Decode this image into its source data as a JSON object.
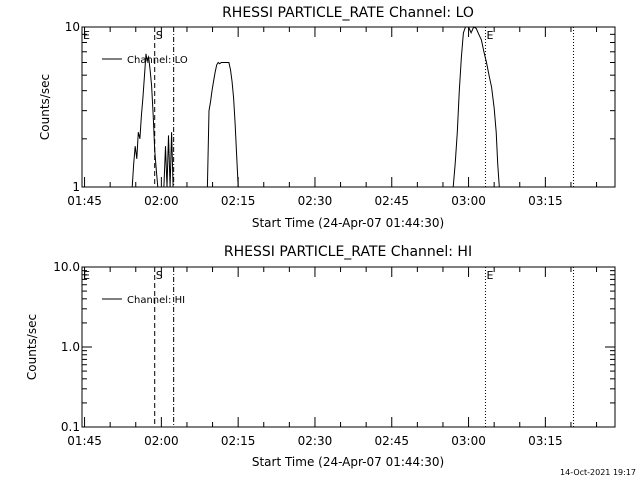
{
  "chart_data": [
    {
      "type": "line",
      "title": "RHESSI PARTICLE_RATE Channel: LO",
      "xlabel": "Start Time (24-Apr-07 01:44:30)",
      "ylabel": "Counts/sec",
      "yscale": "log",
      "ylim": [
        1,
        10
      ],
      "xlim_minutes": [
        0,
        100
      ],
      "x_ticks": [
        {
          "label": "01:45",
          "t": 0.5
        },
        {
          "label": "02:00",
          "t": 15.5
        },
        {
          "label": "02:15",
          "t": 30.5
        },
        {
          "label": "02:30",
          "t": 45.5
        },
        {
          "label": "02:45",
          "t": 60.5
        },
        {
          "label": "03:00",
          "t": 75.5
        },
        {
          "label": "03:15",
          "t": 90.5
        }
      ],
      "y_ticks": [
        {
          "label": "1",
          "v": 1
        },
        {
          "label": "10",
          "v": 10
        }
      ],
      "legend": "Channel: LO",
      "markers": [
        {
          "label": "E",
          "t": 0.0,
          "style": "none"
        },
        {
          "label": "S",
          "t": 14.2,
          "style": "dashed"
        },
        {
          "label": "",
          "t": 17.9,
          "style": "dashdot"
        },
        {
          "label": "E",
          "t": 78.8,
          "style": "dotted"
        },
        {
          "label": "",
          "t": 96.0,
          "style": "dotted"
        }
      ],
      "series": [
        {
          "name": "Channel: LO",
          "points": [
            [
              9.8,
              1.0
            ],
            [
              10.1,
              1.4
            ],
            [
              10.4,
              1.8
            ],
            [
              10.7,
              1.5
            ],
            [
              11.0,
              2.2
            ],
            [
              11.3,
              2.0
            ],
            [
              11.6,
              2.8
            ],
            [
              11.9,
              3.6
            ],
            [
              12.2,
              5.0
            ],
            [
              12.5,
              6.8
            ],
            [
              12.7,
              6.2
            ],
            [
              13.0,
              6.5
            ],
            [
              13.3,
              5.4
            ],
            [
              13.6,
              4.3
            ],
            [
              13.9,
              2.8
            ],
            [
              14.2,
              1.7
            ],
            [
              14.5,
              1.3
            ],
            [
              14.8,
              1.0
            ],
            [
              16.0,
              1.0
            ],
            [
              16.3,
              1.8
            ],
            [
              16.6,
              1.0
            ],
            [
              16.9,
              2.1
            ],
            [
              17.2,
              1.0
            ],
            [
              17.5,
              2.2
            ],
            [
              17.8,
              1.0
            ],
            [
              24.5,
              1.0
            ],
            [
              24.8,
              3.0
            ],
            [
              25.1,
              3.4
            ],
            [
              25.4,
              4.0
            ],
            [
              25.7,
              4.6
            ],
            [
              26.0,
              5.2
            ],
            [
              26.3,
              5.8
            ],
            [
              26.6,
              6.0
            ],
            [
              26.9,
              5.9
            ],
            [
              27.2,
              6.0
            ],
            [
              28.7,
              6.0
            ],
            [
              29.0,
              5.4
            ],
            [
              29.3,
              4.6
            ],
            [
              29.6,
              3.6
            ],
            [
              29.9,
              2.5
            ],
            [
              30.2,
              1.6
            ],
            [
              30.5,
              1.0
            ],
            [
              72.5,
              1.0
            ],
            [
              72.9,
              1.4
            ],
            [
              73.3,
              2.2
            ],
            [
              73.7,
              4.0
            ],
            [
              74.1,
              6.5
            ],
            [
              74.5,
              9.2
            ],
            [
              74.9,
              10.0
            ],
            [
              75.5,
              10.0
            ],
            [
              76.0,
              9.2
            ],
            [
              76.5,
              10.0
            ],
            [
              77.0,
              9.8
            ],
            [
              77.5,
              9.0
            ],
            [
              78.0,
              8.3
            ],
            [
              78.5,
              7.0
            ],
            [
              79.0,
              6.0
            ],
            [
              79.5,
              5.0
            ],
            [
              80.0,
              4.2
            ],
            [
              80.5,
              3.1
            ],
            [
              80.9,
              2.2
            ],
            [
              81.2,
              1.4
            ],
            [
              81.5,
              1.0
            ]
          ]
        }
      ]
    },
    {
      "type": "line",
      "title": "RHESSI PARTICLE_RATE Channel: HI",
      "xlabel": "Start Time (24-Apr-07 01:44:30)",
      "ylabel": "Counts/sec",
      "yscale": "log",
      "ylim": [
        0.1,
        10
      ],
      "xlim_minutes": [
        0,
        100
      ],
      "x_ticks": [
        {
          "label": "01:45",
          "t": 0.5
        },
        {
          "label": "02:00",
          "t": 15.5
        },
        {
          "label": "02:15",
          "t": 30.5
        },
        {
          "label": "02:30",
          "t": 45.5
        },
        {
          "label": "02:45",
          "t": 60.5
        },
        {
          "label": "03:00",
          "t": 75.5
        },
        {
          "label": "03:15",
          "t": 90.5
        }
      ],
      "y_ticks": [
        {
          "label": "0.1",
          "v": 0.1
        },
        {
          "label": "1.0",
          "v": 1
        },
        {
          "label": "10.0",
          "v": 10
        }
      ],
      "legend": "Channel: HI",
      "markers": [
        {
          "label": "E",
          "t": 0.0,
          "style": "none"
        },
        {
          "label": "S",
          "t": 14.2,
          "style": "dashed"
        },
        {
          "label": "",
          "t": 17.9,
          "style": "dashdot"
        },
        {
          "label": "E",
          "t": 78.8,
          "style": "dotted"
        },
        {
          "label": "",
          "t": 96.0,
          "style": "dotted"
        }
      ],
      "series": [
        {
          "name": "Channel: HI",
          "points": []
        }
      ]
    }
  ],
  "footer": {
    "timestamp": "14-Oct-2021 19:17"
  }
}
